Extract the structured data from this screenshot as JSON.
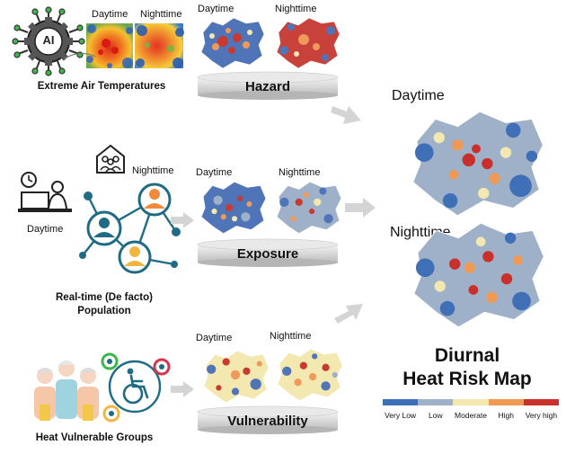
{
  "rows": [
    {
      "id": "hazard",
      "source_label": "Extreme Air Temperatures",
      "raster_labels": [
        "Daytime",
        "Nighttime"
      ],
      "map_labels": [
        "Daytime",
        "Nighttime"
      ],
      "platform_label": "Hazard"
    },
    {
      "id": "exposure",
      "source_label": "Real-time (De facto) Population",
      "small_labels": {
        "night": "Nighttime",
        "day": "Daytime"
      },
      "map_labels": [
        "Daytime",
        "Nighttime"
      ],
      "platform_label": "Exposure"
    },
    {
      "id": "vulnerability",
      "source_label": "Heat Vulnerable Groups",
      "map_labels": [
        "Daytime",
        "Nighttime"
      ],
      "platform_label": "Vulnerability"
    }
  ],
  "result": {
    "day_label": "Daytime",
    "night_label": "Nighttime",
    "title_line1": "Diurnal",
    "title_line2": "Heat Risk Map"
  },
  "ai_badge": "AI",
  "legend": [
    {
      "label": "Very Low",
      "color": "#3f6fb6"
    },
    {
      "label": "Low",
      "color": "#9fb1c8"
    },
    {
      "label": "Moderate",
      "color": "#f2e8b0"
    },
    {
      "label": "High",
      "color": "#ee9a55"
    },
    {
      "label": "Very high",
      "color": "#c9302c"
    }
  ],
  "icons": [
    "ai-chip-icon",
    "house-group-icon",
    "desk-clock-icon",
    "network-people-icon",
    "elderly-group-icon",
    "wheelchair-icon",
    "arrow-right-icon"
  ]
}
